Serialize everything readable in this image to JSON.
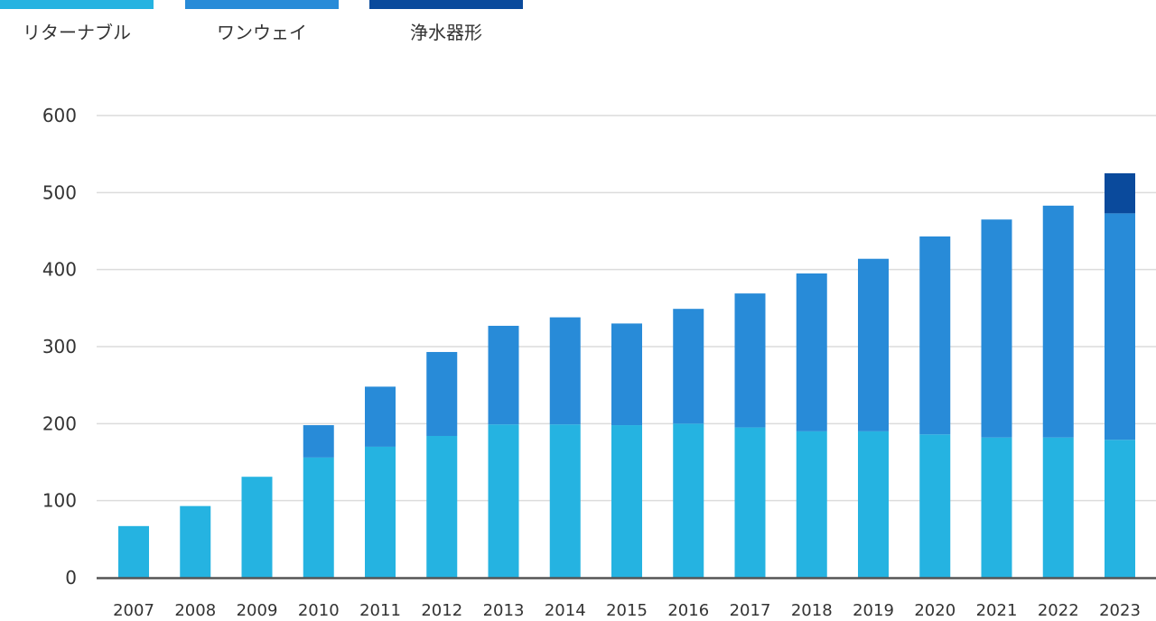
{
  "chart_data": {
    "type": "bar",
    "stacked": true,
    "categories": [
      "2007",
      "2008",
      "2009",
      "2010",
      "2011",
      "2012",
      "2013",
      "2014",
      "2015",
      "2016",
      "2017",
      "2018",
      "2019",
      "2020",
      "2021",
      "2022",
      "2023"
    ],
    "series": [
      {
        "name": "リターナブル",
        "color": "#25b3e1",
        "values": [
          67,
          93,
          131,
          156,
          170,
          184,
          199,
          199,
          198,
          200,
          195,
          190,
          190,
          186,
          182,
          182,
          179
        ]
      },
      {
        "name": "ワンウェイ",
        "color": "#288bd8",
        "values": [
          0,
          0,
          0,
          42,
          78,
          109,
          128,
          139,
          132,
          149,
          174,
          205,
          224,
          257,
          283,
          301,
          294
        ]
      },
      {
        "name": "浄水器形",
        "color": "#0a4a9c",
        "values": [
          0,
          0,
          0,
          0,
          0,
          0,
          0,
          0,
          0,
          0,
          0,
          0,
          0,
          0,
          0,
          0,
          52
        ]
      }
    ],
    "yticks": [
      "0",
      "100",
      "200",
      "300",
      "400",
      "500",
      "600"
    ],
    "ylim": [
      0,
      600
    ],
    "grid": true,
    "legend": "top-left"
  }
}
